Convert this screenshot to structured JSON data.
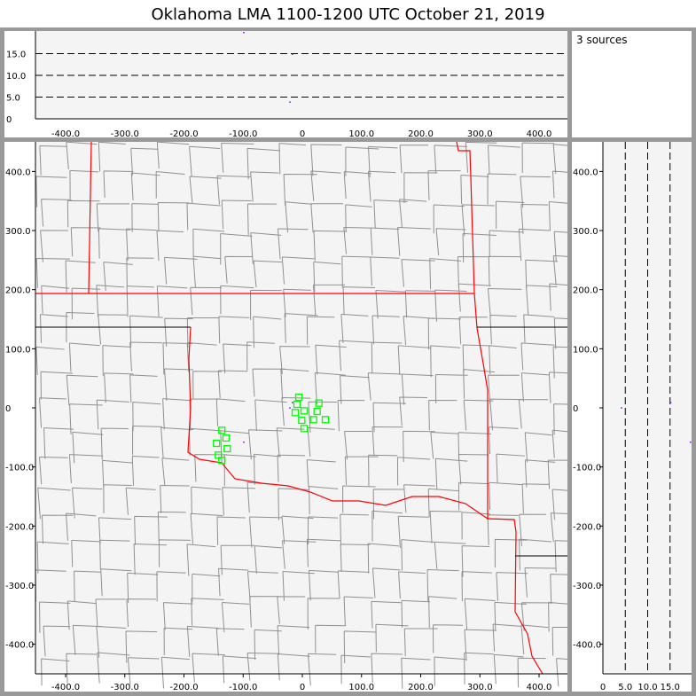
{
  "title": "Oklahoma LMA   1100-1200 UTC  October 21, 2019",
  "info": {
    "source_count_label": "3 sources"
  },
  "axes": {
    "x_km_ticks": [
      -400,
      -300,
      -200,
      -100,
      0,
      100,
      200,
      300,
      400
    ],
    "x_km_labels": [
      "-400.0",
      "-300.0",
      "-200.0",
      "-100.0",
      "0",
      "100.0",
      "200.0",
      "300.0",
      "400.0"
    ],
    "y_km_ticks": [
      400,
      300,
      200,
      100,
      0,
      -100,
      -200,
      -300,
      -400
    ],
    "y_km_labels": [
      "400.0",
      "300.0",
      "200.0",
      "100.0",
      "0",
      "-100.0",
      "-200.0",
      "-300.0",
      "-400.0"
    ],
    "alt_ticks": [
      0,
      5,
      10,
      15
    ],
    "alt_labels": [
      "0",
      "5.0",
      "10.0",
      "15.0"
    ],
    "km_range": [
      -450,
      450
    ],
    "alt_range": [
      0,
      20
    ]
  },
  "colors": {
    "state_border": "#ff0000",
    "county_line": "#909090",
    "station": "#00ff00",
    "source": "#8000ff",
    "plot_bg": "#f4f4f4"
  },
  "stations_km": [
    [
      -6,
      18
    ],
    [
      -9,
      6
    ],
    [
      28,
      8
    ],
    [
      -12,
      -8
    ],
    [
      3,
      -5
    ],
    [
      25,
      -6
    ],
    [
      -1,
      -21
    ],
    [
      19,
      -20
    ],
    [
      39,
      -20
    ],
    [
      3,
      -35
    ],
    [
      -136,
      -38
    ],
    [
      -129,
      -51
    ],
    [
      -145,
      -60
    ],
    [
      -127,
      -69
    ],
    [
      -142,
      -80
    ],
    [
      -136,
      -89
    ]
  ],
  "sources": [
    {
      "x_km": -100,
      "y_km": -57,
      "alt_km": 20
    },
    {
      "x_km": -22,
      "y_km": 1,
      "alt_km": 4
    },
    {
      "x_km": -18,
      "y_km": 10,
      "alt_km": 15
    }
  ]
}
